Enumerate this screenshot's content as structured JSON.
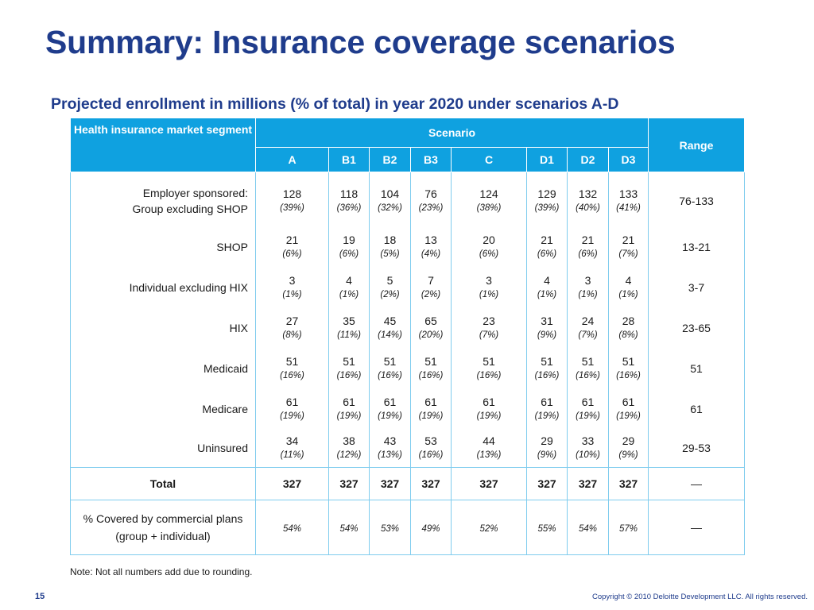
{
  "title": "Summary: Insurance coverage scenarios",
  "subtitle": "Projected enrollment in millions (% of total) in year 2020 under scenarios A-D",
  "table": {
    "segment_header": "Health insurance market segment",
    "scenario_header": "Scenario",
    "range_header": "Range",
    "scenarios": [
      "A",
      "B1",
      "B2",
      "B3",
      "C",
      "D1",
      "D2",
      "D3"
    ],
    "rows": [
      {
        "label": "Employer sponsored:\nGroup excluding SHOP",
        "values": [
          [
            "128",
            "(39%)"
          ],
          [
            "118",
            "(36%)"
          ],
          [
            "104",
            "(32%)"
          ],
          [
            "76",
            "(23%)"
          ],
          [
            "124",
            "(38%)"
          ],
          [
            "129",
            "(39%)"
          ],
          [
            "132",
            "(40%)"
          ],
          [
            "133",
            "(41%)"
          ]
        ],
        "range": "76-133"
      },
      {
        "label": "SHOP",
        "values": [
          [
            "21",
            "(6%)"
          ],
          [
            "19",
            "(6%)"
          ],
          [
            "18",
            "(5%)"
          ],
          [
            "13",
            "(4%)"
          ],
          [
            "20",
            "(6%)"
          ],
          [
            "21",
            "(6%)"
          ],
          [
            "21",
            "(6%)"
          ],
          [
            "21",
            "(7%)"
          ]
        ],
        "range": "13-21"
      },
      {
        "label": "Individual excluding HIX",
        "values": [
          [
            "3",
            "(1%)"
          ],
          [
            "4",
            "(1%)"
          ],
          [
            "5",
            "(2%)"
          ],
          [
            "7",
            "(2%)"
          ],
          [
            "3",
            "(1%)"
          ],
          [
            "4",
            "(1%)"
          ],
          [
            "3",
            "(1%)"
          ],
          [
            "4",
            "(1%)"
          ]
        ],
        "range": "3-7"
      },
      {
        "label": "HIX",
        "values": [
          [
            "27",
            "(8%)"
          ],
          [
            "35",
            "(11%)"
          ],
          [
            "45",
            "(14%)"
          ],
          [
            "65",
            "(20%)"
          ],
          [
            "23",
            "(7%)"
          ],
          [
            "31",
            "(9%)"
          ],
          [
            "24",
            "(7%)"
          ],
          [
            "28",
            "(8%)"
          ]
        ],
        "range": "23-65"
      },
      {
        "label": "Medicaid",
        "values": [
          [
            "51",
            "(16%)"
          ],
          [
            "51",
            "(16%)"
          ],
          [
            "51",
            "(16%)"
          ],
          [
            "51",
            "(16%)"
          ],
          [
            "51",
            "(16%)"
          ],
          [
            "51",
            "(16%)"
          ],
          [
            "51",
            "(16%)"
          ],
          [
            "51",
            "(16%)"
          ]
        ],
        "range": "51"
      },
      {
        "label": "Medicare",
        "values": [
          [
            "61",
            "(19%)"
          ],
          [
            "61",
            "(19%)"
          ],
          [
            "61",
            "(19%)"
          ],
          [
            "61",
            "(19%)"
          ],
          [
            "61",
            "(19%)"
          ],
          [
            "61",
            "(19%)"
          ],
          [
            "61",
            "(19%)"
          ],
          [
            "61",
            "(19%)"
          ]
        ],
        "range": "61"
      },
      {
        "label": "Uninsured",
        "values": [
          [
            "34",
            "(11%)"
          ],
          [
            "38",
            "(12%)"
          ],
          [
            "43",
            "(13%)"
          ],
          [
            "53",
            "(16%)"
          ],
          [
            "44",
            "(13%)"
          ],
          [
            "29",
            "(9%)"
          ],
          [
            "33",
            "(10%)"
          ],
          [
            "29",
            "(9%)"
          ]
        ],
        "range": "29-53"
      }
    ],
    "total": {
      "label": "Total",
      "values": [
        "327",
        "327",
        "327",
        "327",
        "327",
        "327",
        "327",
        "327"
      ],
      "range": "—"
    },
    "covered": {
      "label": "% Covered by commercial plans (group + individual)",
      "values": [
        "54%",
        "54%",
        "53%",
        "49%",
        "52%",
        "55%",
        "54%",
        "57%"
      ],
      "range": "—"
    }
  },
  "note": "Note: Not all numbers add due to rounding.",
  "page_number": "15",
  "copyright": "Copyright © 2010 Deloitte Development LLC. All rights reserved.",
  "colors": {
    "title": "#1f3c8c",
    "header_bg": "#0fa1e0",
    "grid": "#7fccee"
  }
}
